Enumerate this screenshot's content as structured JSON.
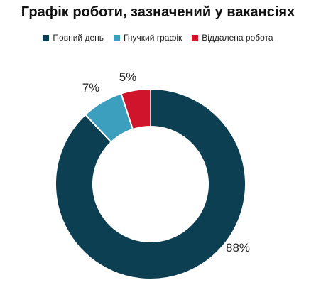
{
  "chart_data": {
    "type": "pie",
    "title": "Графік роботи, зазначений у вакансіях",
    "legend_position": "top",
    "categories": [
      "Повний день",
      "Гнучкий графік",
      "Віддалена робота"
    ],
    "values": [
      88,
      7,
      5
    ],
    "labels": [
      "88%",
      "7%",
      "5%"
    ],
    "colors": [
      "#0d3f52",
      "#3c9fbe",
      "#d0142c"
    ],
    "donut": true
  }
}
